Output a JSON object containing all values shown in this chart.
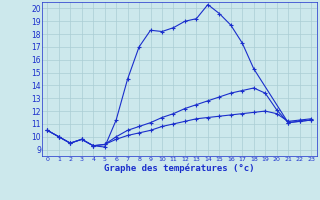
{
  "title": "Graphe des températures (°c)",
  "background_color": "#cce8ec",
  "grid_color": "#aacdd4",
  "line_color": "#1a2ecc",
  "xlim": [
    -0.5,
    23.5
  ],
  "ylim": [
    8.5,
    20.5
  ],
  "yticks": [
    9,
    10,
    11,
    12,
    13,
    14,
    15,
    16,
    17,
    18,
    19,
    20
  ],
  "xticks": [
    0,
    1,
    2,
    3,
    4,
    5,
    6,
    7,
    8,
    9,
    10,
    11,
    12,
    13,
    14,
    15,
    16,
    17,
    18,
    19,
    20,
    21,
    22,
    23
  ],
  "series1": [
    10.5,
    10.0,
    9.5,
    9.8,
    9.3,
    9.2,
    11.3,
    14.5,
    17.0,
    18.3,
    18.2,
    18.5,
    19.0,
    19.2,
    20.3,
    19.6,
    18.7,
    17.3,
    15.3,
    null,
    null,
    11.1,
    11.2,
    11.3
  ],
  "series2": [
    10.5,
    10.0,
    9.5,
    9.8,
    9.3,
    9.4,
    10.0,
    10.5,
    10.8,
    11.1,
    11.5,
    11.8,
    12.2,
    12.5,
    12.8,
    13.1,
    13.4,
    13.6,
    13.8,
    13.4,
    12.1,
    11.1,
    11.2,
    11.3
  ],
  "series3": [
    10.5,
    10.0,
    9.5,
    9.8,
    9.3,
    9.4,
    9.8,
    10.1,
    10.3,
    10.5,
    10.8,
    11.0,
    11.2,
    11.4,
    11.5,
    11.6,
    11.7,
    11.8,
    11.9,
    12.0,
    11.8,
    11.2,
    11.3,
    11.4
  ]
}
